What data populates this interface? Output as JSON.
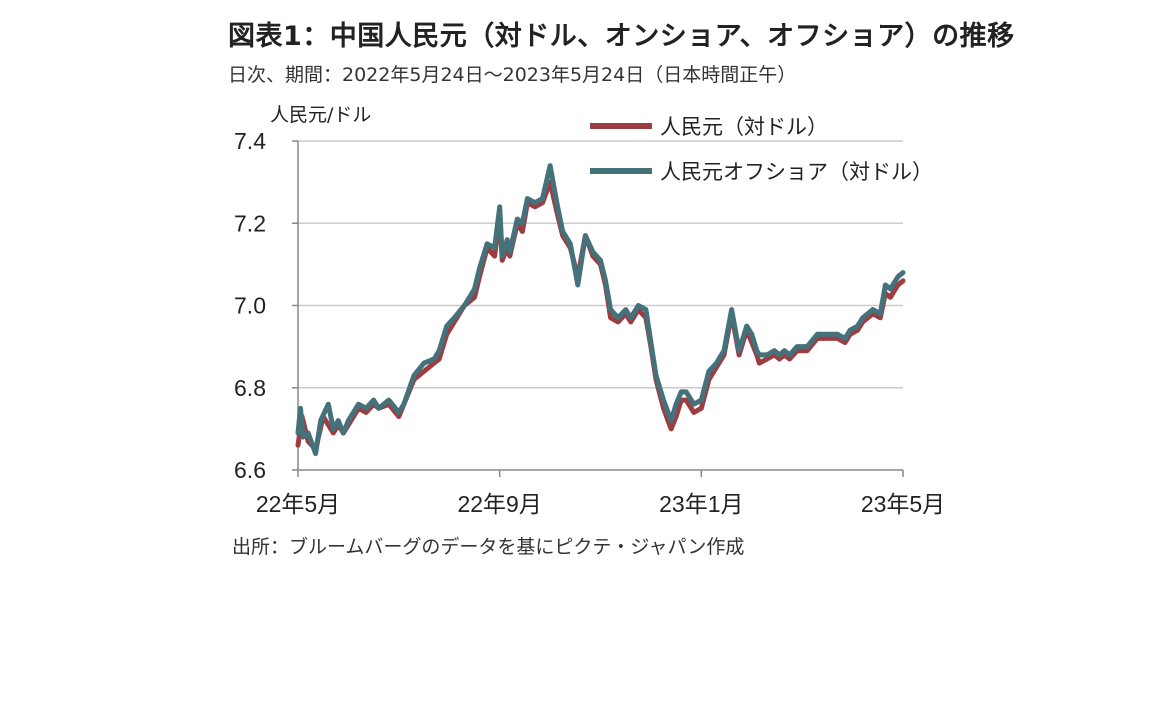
{
  "title": "図表1：中国人民元（対ドル、オンショア、オフショア）の推移",
  "subtitle": "日次、期間：2022年5月24日～2023年5月24日（日本時間正午）",
  "source": "出所：ブルームバーグのデータを基にピクテ・ジャパン作成",
  "colors": {
    "onshore": "#9c3d42",
    "offshore": "#44717a",
    "grid": "#cccccc",
    "axis": "#888888"
  },
  "chart_data": {
    "type": "line",
    "ylabel": "人民元/ドル",
    "ylim": [
      6.6,
      7.4
    ],
    "yticks": [
      6.6,
      6.8,
      7.0,
      7.2,
      7.4
    ],
    "ytick_labels": [
      "6.6",
      "6.8",
      "7.0",
      "7.2",
      "7.4"
    ],
    "xlim": [
      0,
      12
    ],
    "xticks": [
      0,
      4,
      8,
      12
    ],
    "xtick_labels": [
      "22年5月",
      "22年9月",
      "23年1月",
      "23年5月"
    ],
    "x_unit": "months since 2022-05-24",
    "legend": "top-right",
    "grid": true,
    "series": [
      {
        "name": "人民元（対ドル）",
        "x": [
          0,
          0.08,
          0.2,
          0.35,
          0.5,
          0.7,
          0.8,
          0.9,
          1.0,
          1.2,
          1.35,
          1.5,
          1.6,
          1.8,
          2.0,
          2.1,
          2.3,
          2.5,
          2.7,
          2.8,
          2.95,
          3.1,
          3.3,
          3.5,
          3.6,
          3.75,
          3.9,
          4.0,
          4.05,
          4.15,
          4.2,
          4.35,
          4.45,
          4.55,
          4.7,
          4.85,
          5.0,
          5.15,
          5.25,
          5.4,
          5.55,
          5.7,
          5.85,
          6.0,
          6.1,
          6.2,
          6.35,
          6.5,
          6.6,
          6.75,
          6.9,
          7.0,
          7.1,
          7.25,
          7.4,
          7.5,
          7.6,
          7.7,
          7.85,
          8.0,
          8.15,
          8.3,
          8.45,
          8.6,
          8.75,
          8.9,
          9.0,
          9.1,
          9.15,
          9.3,
          9.45,
          9.55,
          9.65,
          9.75,
          9.9,
          10.1,
          10.3,
          10.5,
          10.7,
          10.85,
          10.95,
          11.1,
          11.2,
          11.4,
          11.55,
          11.65,
          11.75,
          11.85,
          11.9,
          12.0
        ],
        "values": [
          6.66,
          6.73,
          6.67,
          6.65,
          6.73,
          6.69,
          6.71,
          6.69,
          6.71,
          6.75,
          6.74,
          6.76,
          6.75,
          6.76,
          6.73,
          6.76,
          6.82,
          6.84,
          6.86,
          6.87,
          6.93,
          6.96,
          7.0,
          7.02,
          7.07,
          7.14,
          7.12,
          7.22,
          7.11,
          7.14,
          7.12,
          7.2,
          7.18,
          7.25,
          7.24,
          7.25,
          7.3,
          7.22,
          7.17,
          7.14,
          7.07,
          7.17,
          7.12,
          7.1,
          7.05,
          6.97,
          6.96,
          6.98,
          6.96,
          6.99,
          6.97,
          6.9,
          6.82,
          6.75,
          6.7,
          6.73,
          6.77,
          6.77,
          6.74,
          6.75,
          6.82,
          6.85,
          6.88,
          6.98,
          6.88,
          6.94,
          6.91,
          6.88,
          6.86,
          6.87,
          6.88,
          6.87,
          6.88,
          6.87,
          6.89,
          6.89,
          6.92,
          6.92,
          6.92,
          6.91,
          6.93,
          6.94,
          6.96,
          6.98,
          6.97,
          7.03,
          7.02,
          7.04,
          7.05,
          7.06
        ]
      },
      {
        "name": "人民元オフショア（対ドル）",
        "x": [
          0,
          0.05,
          0.1,
          0.2,
          0.35,
          0.45,
          0.6,
          0.7,
          0.8,
          0.9,
          1.0,
          1.2,
          1.35,
          1.5,
          1.6,
          1.8,
          2.0,
          2.1,
          2.3,
          2.5,
          2.7,
          2.8,
          2.95,
          3.1,
          3.3,
          3.5,
          3.6,
          3.75,
          3.9,
          4.0,
          4.05,
          4.15,
          4.2,
          4.35,
          4.45,
          4.55,
          4.7,
          4.85,
          5.0,
          5.15,
          5.25,
          5.4,
          5.55,
          5.7,
          5.85,
          6.0,
          6.1,
          6.2,
          6.35,
          6.5,
          6.6,
          6.75,
          6.9,
          7.0,
          7.1,
          7.25,
          7.4,
          7.5,
          7.6,
          7.7,
          7.85,
          8.0,
          8.15,
          8.3,
          8.45,
          8.6,
          8.75,
          8.9,
          9.0,
          9.1,
          9.15,
          9.3,
          9.45,
          9.55,
          9.65,
          9.75,
          9.9,
          10.1,
          10.3,
          10.5,
          10.7,
          10.85,
          10.95,
          11.1,
          11.2,
          11.4,
          11.55,
          11.65,
          11.75,
          11.85,
          11.9,
          12.0
        ],
        "values": [
          6.69,
          6.75,
          6.68,
          6.69,
          6.64,
          6.72,
          6.76,
          6.7,
          6.72,
          6.69,
          6.72,
          6.76,
          6.75,
          6.77,
          6.75,
          6.77,
          6.74,
          6.76,
          6.83,
          6.86,
          6.87,
          6.89,
          6.95,
          6.97,
          7.0,
          7.04,
          7.09,
          7.15,
          7.14,
          7.24,
          7.12,
          7.16,
          7.13,
          7.21,
          7.2,
          7.26,
          7.25,
          7.26,
          7.34,
          7.24,
          7.18,
          7.15,
          7.05,
          7.17,
          7.13,
          7.11,
          7.06,
          6.99,
          6.97,
          6.99,
          6.97,
          7.0,
          6.99,
          6.91,
          6.83,
          6.77,
          6.72,
          6.76,
          6.79,
          6.79,
          6.76,
          6.77,
          6.84,
          6.86,
          6.89,
          6.99,
          6.89,
          6.95,
          6.93,
          6.89,
          6.88,
          6.88,
          6.89,
          6.88,
          6.89,
          6.88,
          6.9,
          6.9,
          6.93,
          6.93,
          6.93,
          6.92,
          6.94,
          6.95,
          6.97,
          6.99,
          6.98,
          7.05,
          7.04,
          7.06,
          7.07,
          7.08
        ]
      }
    ]
  }
}
